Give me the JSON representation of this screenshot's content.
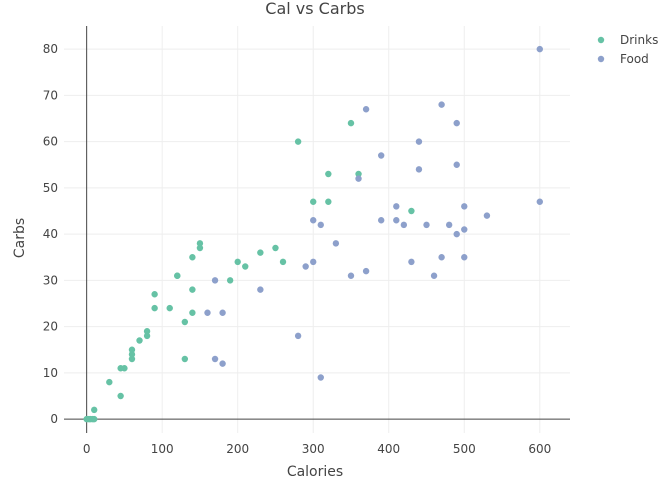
{
  "chart_data": {
    "type": "scatter",
    "title": "Cal vs Carbs",
    "xlabel": "Calories",
    "ylabel": "Carbs",
    "xlim": [
      -30,
      640
    ],
    "ylim": [
      -3,
      85
    ],
    "xticks": [
      0,
      100,
      200,
      300,
      400,
      500,
      600
    ],
    "yticks": [
      0,
      10,
      20,
      30,
      40,
      50,
      60,
      70,
      80
    ],
    "grid": true,
    "legend_position": "top-right",
    "series": [
      {
        "name": "Drinks",
        "color": "#66c2a5",
        "points": [
          [
            0,
            0
          ],
          [
            3,
            0
          ],
          [
            5,
            0
          ],
          [
            8,
            0
          ],
          [
            10,
            0
          ],
          [
            10,
            2
          ],
          [
            30,
            8
          ],
          [
            45,
            5
          ],
          [
            45,
            11
          ],
          [
            50,
            11
          ],
          [
            60,
            13
          ],
          [
            60,
            14
          ],
          [
            60,
            15
          ],
          [
            70,
            17
          ],
          [
            80,
            18
          ],
          [
            80,
            19
          ],
          [
            90,
            24
          ],
          [
            90,
            27
          ],
          [
            110,
            24
          ],
          [
            120,
            31
          ],
          [
            120,
            31
          ],
          [
            130,
            13
          ],
          [
            130,
            21
          ],
          [
            140,
            23
          ],
          [
            140,
            28
          ],
          [
            140,
            35
          ],
          [
            150,
            37
          ],
          [
            150,
            38
          ],
          [
            190,
            30
          ],
          [
            200,
            34
          ],
          [
            210,
            33
          ],
          [
            230,
            36
          ],
          [
            250,
            37
          ],
          [
            260,
            34
          ],
          [
            280,
            60
          ],
          [
            300,
            47
          ],
          [
            320,
            47
          ],
          [
            320,
            53
          ],
          [
            350,
            64
          ],
          [
            360,
            53
          ],
          [
            430,
            45
          ]
        ]
      },
      {
        "name": "Food",
        "color": "#8da0cb",
        "points": [
          [
            160,
            23
          ],
          [
            170,
            13
          ],
          [
            170,
            30
          ],
          [
            180,
            12
          ],
          [
            180,
            23
          ],
          [
            230,
            28
          ],
          [
            280,
            18
          ],
          [
            290,
            33
          ],
          [
            300,
            34
          ],
          [
            300,
            43
          ],
          [
            310,
            9
          ],
          [
            310,
            42
          ],
          [
            330,
            38
          ],
          [
            350,
            31
          ],
          [
            360,
            52
          ],
          [
            370,
            32
          ],
          [
            370,
            67
          ],
          [
            390,
            43
          ],
          [
            390,
            57
          ],
          [
            410,
            43
          ],
          [
            410,
            46
          ],
          [
            420,
            42
          ],
          [
            430,
            34
          ],
          [
            440,
            54
          ],
          [
            440,
            60
          ],
          [
            450,
            42
          ],
          [
            460,
            31
          ],
          [
            470,
            35
          ],
          [
            470,
            68
          ],
          [
            480,
            42
          ],
          [
            490,
            40
          ],
          [
            490,
            55
          ],
          [
            490,
            64
          ],
          [
            500,
            35
          ],
          [
            500,
            41
          ],
          [
            500,
            46
          ],
          [
            530,
            44
          ],
          [
            600,
            47
          ],
          [
            600,
            80
          ]
        ]
      }
    ]
  }
}
